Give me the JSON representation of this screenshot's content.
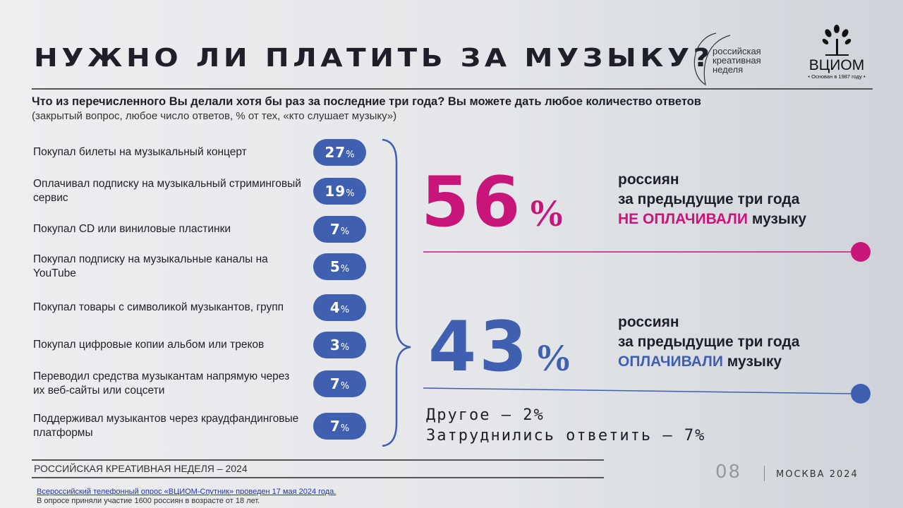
{
  "header": {
    "title": "НУЖНО ЛИ ПЛАТИТЬ ЗА МУЗЫКУ?",
    "partner_logo": [
      "российская",
      "креативная",
      "неделя"
    ],
    "logo": "ВЦИОМ",
    "logo_tagline": "• Основан в 1987 году •"
  },
  "question": {
    "text": "Что из перечисленного Вы делали хотя бы раз за последние три года? Вы можете дать любое количество ответов",
    "note": "(закрытый вопрос, любое число ответов, % от тех, «кто слушает музыку»)"
  },
  "items": [
    {
      "label": "Покупал билеты на музыкальный концерт",
      "value": 27,
      "unit": "%"
    },
    {
      "label": "Оплачивал подписку на музыкальный стриминговый сервис",
      "value": 19,
      "unit": "%"
    },
    {
      "label": "Покупал CD или виниловые пластинки",
      "value": 7,
      "unit": "%"
    },
    {
      "label": "Покупал подписку на музыкальные каналы на YouTube",
      "value": 5,
      "unit": "%"
    },
    {
      "label": "Покупал товары с символикой музыкантов, групп",
      "value": 4,
      "unit": "%"
    },
    {
      "label": "Покупал цифровые копии альбом или треков",
      "value": 3,
      "unit": "%"
    },
    {
      "label": "Переводил средства музыкантам напрямую через их веб-сайты или соцсети",
      "value": 7,
      "unit": "%"
    },
    {
      "label": "Поддерживал музыкантов через краудфандинговые платформы",
      "value": 7,
      "unit": "%"
    }
  ],
  "stats": [
    {
      "value": 56,
      "unit": "%",
      "line1": "россиян",
      "line2": "за предыдущие три года",
      "highlight": "НЕ ОПЛАЧИВАЛИ",
      "tail": "музыку"
    },
    {
      "value": 43,
      "unit": "%",
      "line1": "россиян",
      "line2": "за предыдущие три года",
      "highlight": "ОПЛАЧИВАЛИ",
      "tail": "музыку"
    }
  ],
  "other": [
    "Другое – 2%",
    "Затруднились ответить – 7%"
  ],
  "footer": {
    "event": "РОССИЙСКАЯ КРЕАТИВНАЯ НЕДЕЛЯ – 2024",
    "page": "08",
    "city": "МОСКВА 2024",
    "source": "Всероссийский телефонный опрос «ВЦИОМ-Спутник» проведен 17 мая 2024 года.",
    "sample": "В опросе приняли участие 1600 россиян в возрасте от 18 лет."
  }
}
